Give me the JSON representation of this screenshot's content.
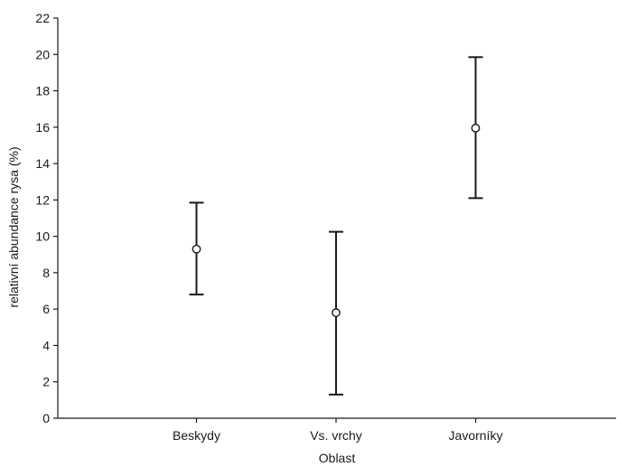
{
  "chart_data": {
    "type": "scatter",
    "title": "",
    "xlabel": "Oblast",
    "ylabel": "relativní abundance rysa (%)",
    "ylim": [
      0,
      22
    ],
    "yticks": [
      0,
      2,
      4,
      6,
      8,
      10,
      12,
      14,
      16,
      18,
      20,
      22
    ],
    "categories": [
      "Beskydy",
      "Vs. vrchy",
      "Javorníky"
    ],
    "series": [
      {
        "values": [
          9.3,
          5.8,
          15.95
        ],
        "lower": [
          6.8,
          1.3,
          12.1
        ],
        "upper": [
          11.85,
          10.25,
          19.85
        ]
      }
    ],
    "grid": false,
    "legend": "none",
    "colors": {
      "ink": "#1a1a1a",
      "background": "#ffffff"
    }
  }
}
